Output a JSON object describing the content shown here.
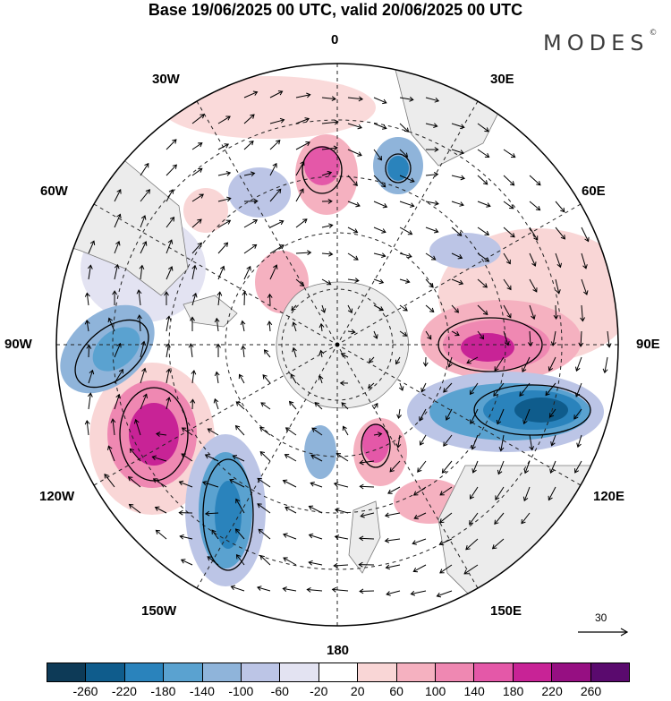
{
  "title": "Base 19/06/2025 00 UTC, valid 20/06/2025 00 UTC",
  "brand": "MODES",
  "brand_mark": "©",
  "lon_labels": {
    "top": "0",
    "lon_30e": "30E",
    "lon_60e": "60E",
    "lon_90e": "90E",
    "lon_120e": "120E",
    "lon_150e": "150E",
    "bottom": "180",
    "lon_150w": "150W",
    "lon_120w": "120W",
    "lon_90w": "90W",
    "lon_60w": "60W",
    "lon_30w": "30W"
  },
  "reference_vector": {
    "label": "30"
  },
  "colorbar": {
    "colors": [
      "#0d3a57",
      "#0f5c8c",
      "#2a83bc",
      "#5aa2d0",
      "#8fb4da",
      "#bcc5e6",
      "#e3e3f2",
      "#ffffff",
      "#f9d6d6",
      "#f5b1c0",
      "#ef88b2",
      "#e458a8",
      "#c82396",
      "#960f82",
      "#5a0a6e"
    ],
    "labels": [
      "-260",
      "-220",
      "-180",
      "-140",
      "-100",
      "-60",
      "-20",
      "20",
      "60",
      "100",
      "140",
      "180",
      "220",
      "260"
    ]
  },
  "colors": {
    "land": "#ececec",
    "coast": "#7a7a7a",
    "grid": "#222222"
  }
}
